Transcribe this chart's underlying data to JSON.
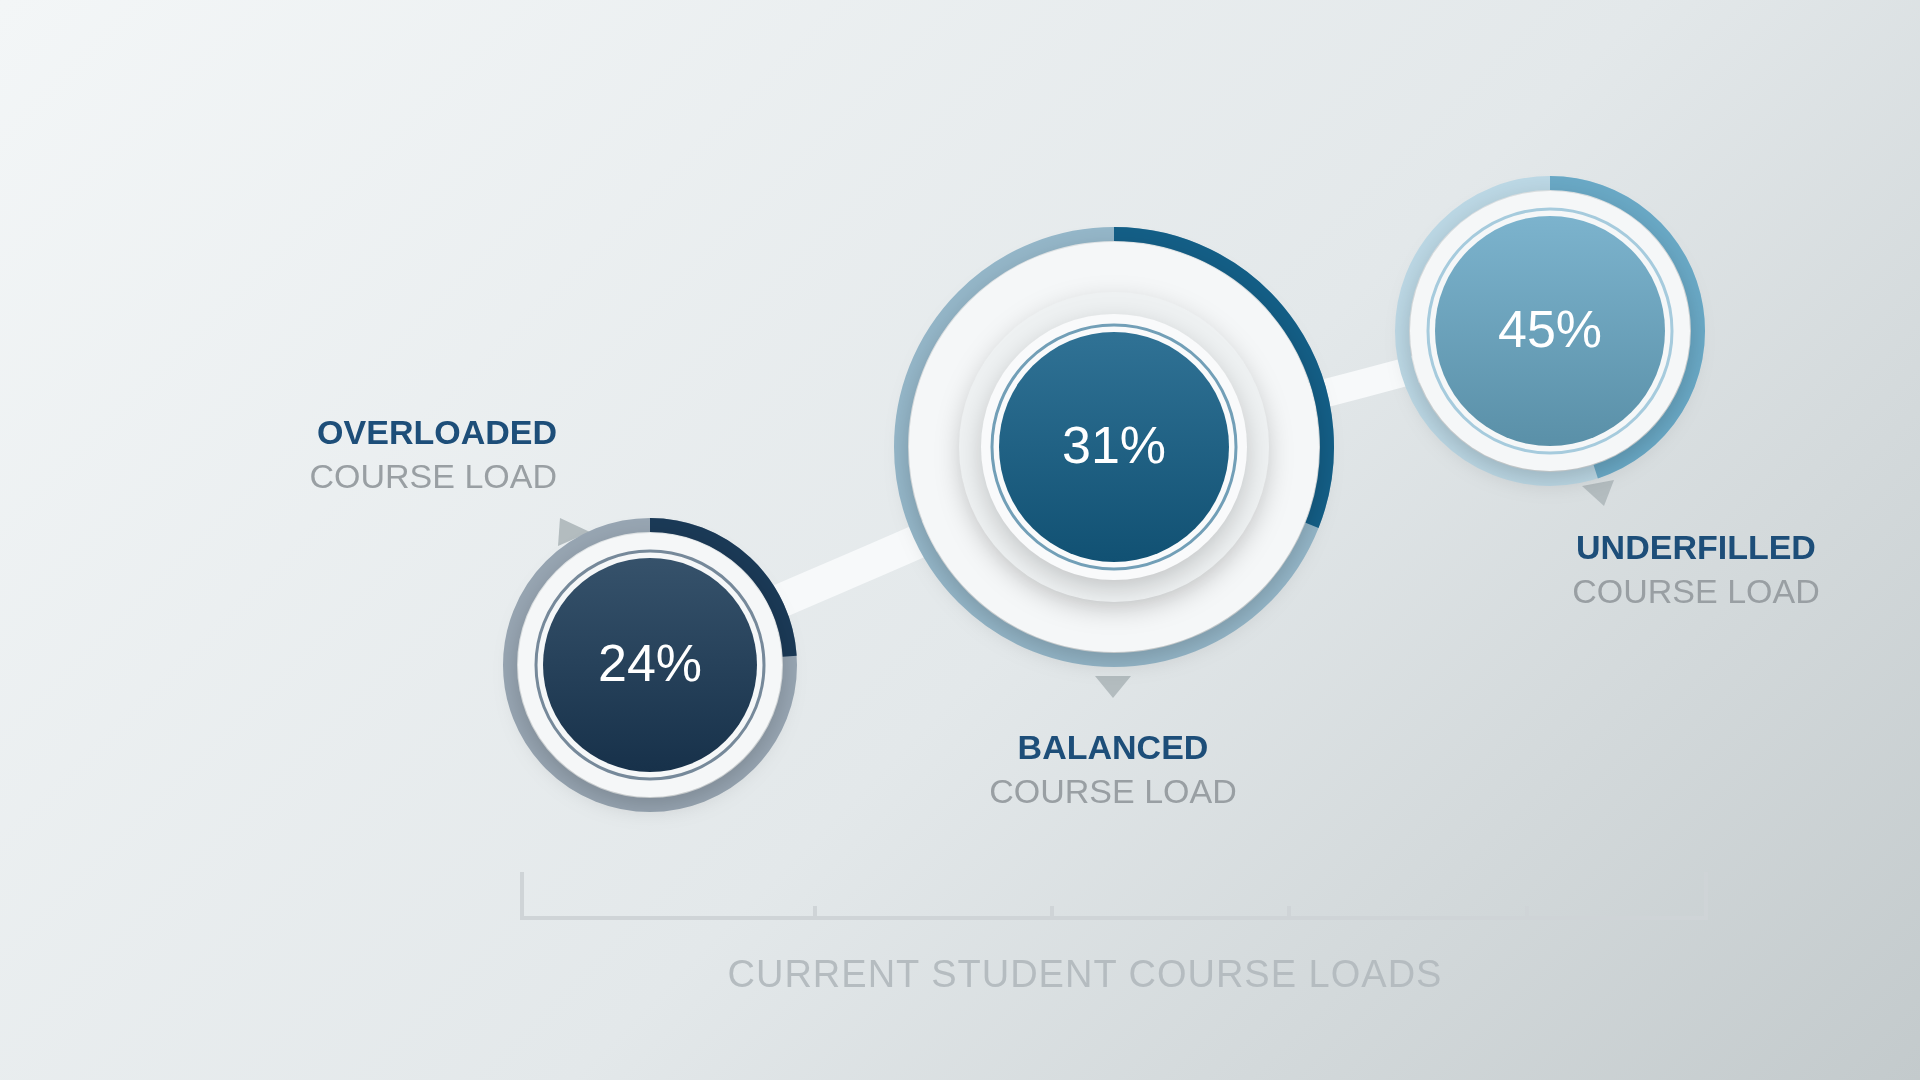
{
  "chart_data": {
    "type": "other",
    "title": "CURRENT STUDENT COURSE LOADS",
    "categories": [
      "OVERLOADED COURSE LOAD",
      "BALANCED COURSE LOAD",
      "UNDERFILLED COURSE LOAD"
    ],
    "values": [
      24,
      31,
      45
    ],
    "value_labels": [
      "24%",
      "31%",
      "45%"
    ],
    "colors": [
      "#1b3a57",
      "#145f87",
      "#6aa9c6"
    ]
  }
}
